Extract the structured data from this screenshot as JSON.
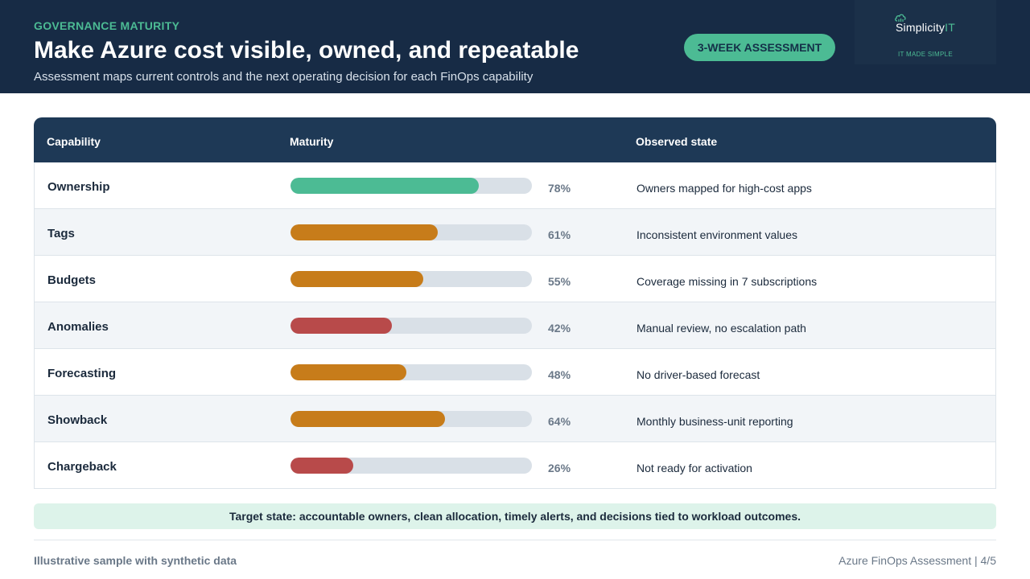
{
  "header": {
    "eyebrow": "GOVERNANCE MATURITY",
    "title": "Make Azure cost visible, owned, and repeatable",
    "subtitle": "Assessment maps current controls and the next operating decision for each FinOps capability",
    "badge": "3-WEEK ASSESSMENT",
    "logo": {
      "name_main": "Simplicity",
      "name_accent": "IT",
      "tagline": "IT MADE SIMPLE",
      "icon": "cloud-logo-icon"
    }
  },
  "table": {
    "columns": [
      "Capability",
      "Maturity",
      "Observed state"
    ],
    "rows": [
      {
        "capability": "Ownership",
        "maturity": 78,
        "label": "78%",
        "color": "#4cbb94",
        "observed": "Owners mapped for high-cost apps"
      },
      {
        "capability": "Tags",
        "maturity": 61,
        "label": "61%",
        "color": "#c77c1a",
        "observed": "Inconsistent environment values"
      },
      {
        "capability": "Budgets",
        "maturity": 55,
        "label": "55%",
        "color": "#c77c1a",
        "observed": "Coverage missing in 7 subscriptions"
      },
      {
        "capability": "Anomalies",
        "maturity": 42,
        "label": "42%",
        "color": "#b84a4a",
        "observed": "Manual review, no escalation path"
      },
      {
        "capability": "Forecasting",
        "maturity": 48,
        "label": "48%",
        "color": "#c77c1a",
        "observed": "No driver-based forecast"
      },
      {
        "capability": "Showback",
        "maturity": 64,
        "label": "64%",
        "color": "#c77c1a",
        "observed": "Monthly business-unit reporting"
      },
      {
        "capability": "Chargeback",
        "maturity": 26,
        "label": "26%",
        "color": "#b84a4a",
        "observed": "Not ready for activation"
      }
    ]
  },
  "callout": "Target state: accountable owners, clean allocation, timely alerts, and decisions tied to workload outcomes.",
  "footer": {
    "left": "Illustrative sample with synthetic data",
    "right": "Azure FinOps Assessment | 4/5"
  }
}
